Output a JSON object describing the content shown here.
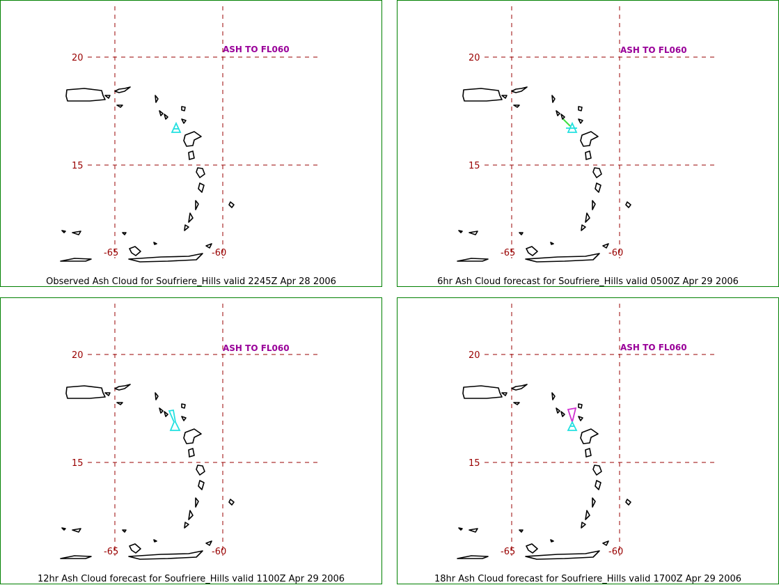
{
  "panels": [
    {
      "caption": "Observed Ash Cloud for Soufriere_Hills valid 2245Z Apr 28 2006",
      "ash_label": "ASH TO FL060",
      "plume": "obs"
    },
    {
      "caption": "6hr Ash Cloud forecast for Soufriere_Hills valid 0500Z Apr 29 2006",
      "ash_label": "ASH TO FL060",
      "plume": "obs_trail"
    },
    {
      "caption": "12hr Ash Cloud forecast for Soufriere_Hills valid 1100Z Apr 29 2006",
      "ash_label": "ASH TO FL060",
      "plume": "obs_long"
    },
    {
      "caption": "18hr Ash Cloud forecast for Soufriere_Hills valid 1700Z Apr 29 2006",
      "ash_label": "ASH TO FL060",
      "plume": "forecast"
    }
  ],
  "axes": {
    "lat_labels": [
      "20",
      "15"
    ],
    "lon_labels": [
      "-65",
      "-60"
    ]
  },
  "colors": {
    "grid": "#990000",
    "observed_ash": "#22e0e0",
    "forecast_ash": "#d030d0",
    "border": "#008000"
  }
}
